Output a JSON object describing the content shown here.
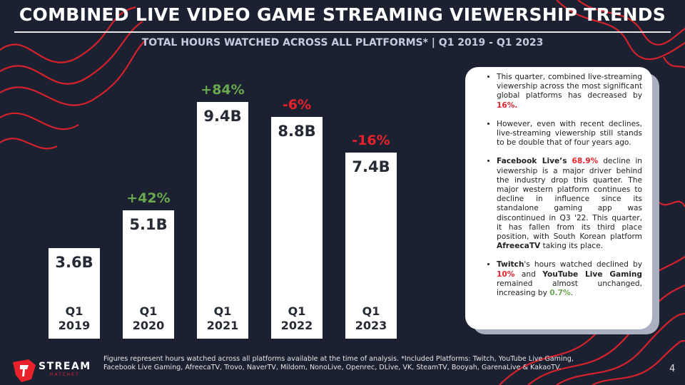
{
  "chart_data": {
    "type": "bar",
    "title": "COMBINED LIVE VIDEO GAME STREAMING VIEWERSHIP TRENDS",
    "subtitle": "TOTAL HOURS WATCHED ACROSS ALL PLATFORMS* | Q1 2019 - Q1 2023",
    "categories": [
      "Q1 2019",
      "Q1 2020",
      "Q1 2021",
      "Q1 2022",
      "Q1 2023"
    ],
    "values": [
      3.6,
      5.1,
      9.4,
      8.8,
      7.4
    ],
    "value_labels": [
      "3.6B",
      "5.1B",
      "9.4B",
      "8.8B",
      "7.4B"
    ],
    "color": "#ffffff",
    "change_labels": [
      null,
      "+42%",
      "+84%",
      "-6%",
      "-16%"
    ],
    "change_colors": [
      null,
      "#6aa84f",
      "#6aa84f",
      "#e8212b",
      "#e8212b"
    ]
  },
  "panel": {
    "bullets": [
      [
        {
          "text": "This quarter, combined live-streaming viewership across the most significant global platforms has decreased by "
        },
        {
          "text": "16%.",
          "bold": true,
          "color": "#e8212b"
        }
      ],
      [
        {
          "text": "However, even with recent declines, live-streaming viewership still stands to be double that of four years ago."
        }
      ],
      [
        {
          "text": "Facebook Live’s",
          "bold": true
        },
        {
          "text": " "
        },
        {
          "text": "68.9%",
          "bold": true,
          "color": "#e8212b"
        },
        {
          "text": " decline in viewership is a major driver behind the industry drop this quarter. The major western platform continues to decline in influence since its standalone gaming app was discontinued in Q3 '22. This quarter, it has fallen from its third place position, with South Korean platform "
        },
        {
          "text": "AfreecaTV",
          "bold": true
        },
        {
          "text": " taking its place."
        }
      ],
      [
        {
          "text": "Twitch",
          "bold": true
        },
        {
          "text": "'s hours watched declined by "
        },
        {
          "text": "10%",
          "bold": true,
          "color": "#e8212b"
        },
        {
          "text": " and "
        },
        {
          "text": "YouTube Live Gaming",
          "bold": true
        },
        {
          "text": " remained almost unchanged, increasing by "
        },
        {
          "text": "0.7%",
          "bold": true,
          "color": "#6aa84f"
        },
        {
          "text": "."
        }
      ]
    ]
  },
  "footnote": "Figures represent hours watched across all platforms available at the time of analysis. *Included Platforms: Twitch, YouTube Live Gaming, Facebook Live Gaming, AfreecaTV, Trovo, NaverTV, Mildom, NonoLive, Openrec, DLive, VK, SteamTV, Booyah, GarenaLive & KakaoTV.",
  "logo": {
    "name": "STREAM",
    "sub": "HATCHET"
  },
  "page_number": "4"
}
